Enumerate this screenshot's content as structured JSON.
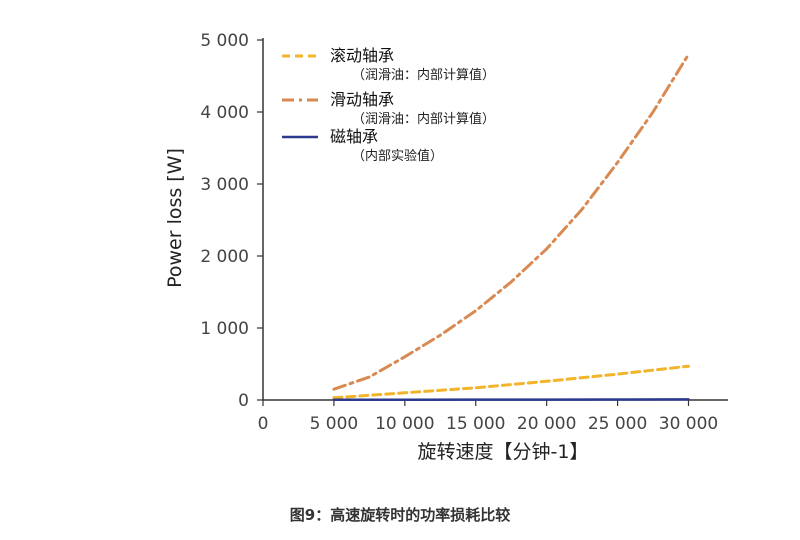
{
  "chart_data": {
    "type": "line",
    "xlabel": "旋转速度【分钟-1】",
    "ylabel": "Power loss [W]",
    "xlim": [
      0,
      31000
    ],
    "ylim": [
      0,
      5000
    ],
    "x_ticks": [
      0,
      5000,
      10000,
      15000,
      20000,
      25000,
      30000
    ],
    "x_tick_labels": [
      "0",
      "5 000",
      "10 000",
      "15 000",
      "20 000",
      "25 000",
      "30 000"
    ],
    "y_ticks": [
      0,
      1000,
      2000,
      3000,
      4000,
      5000
    ],
    "y_tick_labels": [
      "0",
      "1 000",
      "2 000",
      "3 000",
      "4 000",
      "5 000"
    ],
    "grid": false,
    "legend_position": "top-left",
    "series": [
      {
        "name": "滚动轴承",
        "note": "（润滑油：内部计算值）",
        "color": "#f2b42a",
        "style": "dashed",
        "x": [
          5000,
          10000,
          15000,
          20000,
          25000,
          30000
        ],
        "y": [
          30,
          100,
          170,
          260,
          360,
          470
        ]
      },
      {
        "name": "滑动轴承",
        "note": "（润滑油：内部计算值）",
        "color": "#d98a52",
        "style": "dashdot",
        "x": [
          5000,
          7500,
          10000,
          12500,
          15000,
          17500,
          20000,
          22500,
          25000,
          27500,
          30000
        ],
        "y": [
          150,
          320,
          600,
          900,
          1240,
          1640,
          2100,
          2650,
          3300,
          4000,
          4800
        ]
      },
      {
        "name": "磁轴承",
        "note": "（内部实验值）",
        "color": "#2b3a8f",
        "style": "solid",
        "x": [
          5000,
          10000,
          15000,
          20000,
          25000,
          30000
        ],
        "y": [
          3,
          4,
          5,
          6,
          7,
          8
        ]
      }
    ]
  },
  "caption": "图9：高速旋转时的功率损耗比较"
}
